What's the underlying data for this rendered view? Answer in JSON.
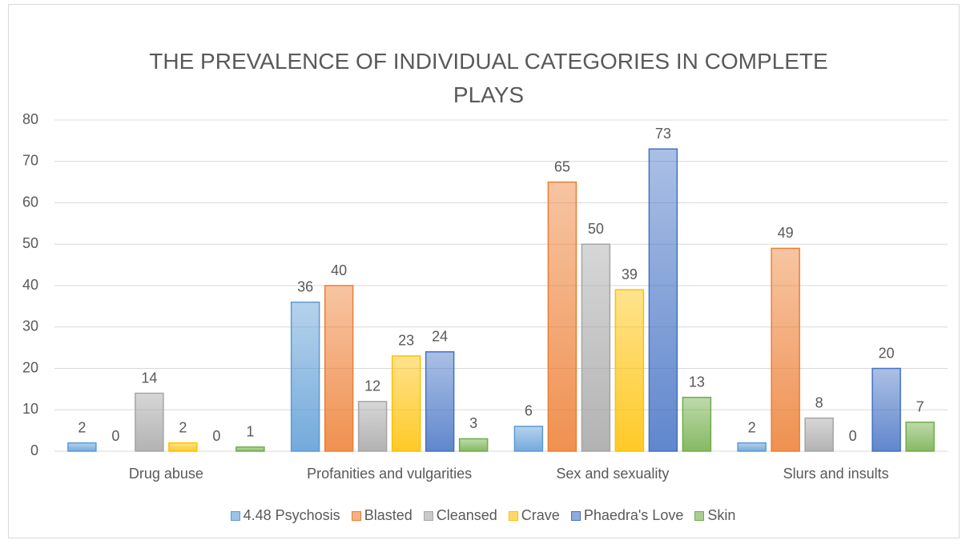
{
  "chart_data": {
    "type": "bar",
    "title": "THE PREVALENCE OF INDIVIDUAL CATEGORIES IN COMPLETE PLAYS",
    "categories": [
      "Drug abuse",
      "Profanities and vulgarities",
      "Sex and sexuality",
      "Slurs and insults"
    ],
    "series": [
      {
        "name": "4.48 Psychosis",
        "color": "#5b9bd5",
        "values": [
          2,
          36,
          6,
          2
        ]
      },
      {
        "name": "Blasted",
        "color": "#ed7d31",
        "values": [
          0,
          40,
          65,
          49
        ]
      },
      {
        "name": "Cleansed",
        "color": "#a5a5a5",
        "values": [
          14,
          12,
          50,
          8
        ]
      },
      {
        "name": "Crave",
        "color": "#ffc000",
        "values": [
          2,
          23,
          39,
          0
        ]
      },
      {
        "name": "Phaedra's Love",
        "color": "#4472c4",
        "values": [
          0,
          24,
          73,
          20
        ]
      },
      {
        "name": "Skin",
        "color": "#70ad47",
        "values": [
          1,
          3,
          13,
          7
        ]
      }
    ],
    "ylim": [
      0,
      80
    ],
    "yticks": [
      0,
      10,
      20,
      30,
      40,
      50,
      60,
      70,
      80
    ],
    "grid": true,
    "legend": "bottom"
  }
}
